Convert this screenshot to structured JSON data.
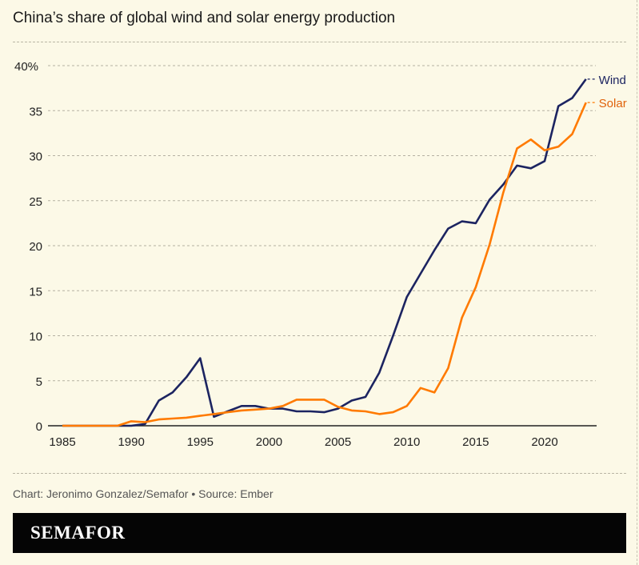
{
  "title": "China’s share of global wind and solar energy production",
  "credit": "Chart: Jeronimo Gonzalez/Semafor • Source: Ember",
  "brand": "SEMAFOR",
  "chart_data": {
    "type": "line",
    "title": "China’s share of global wind and solar energy production",
    "xlabel": "",
    "ylabel": "",
    "xlim": [
      1985,
      2023
    ],
    "ylim": [
      0,
      40
    ],
    "x_ticks": [
      1985,
      1990,
      1995,
      2000,
      2005,
      2010,
      2015,
      2020
    ],
    "y_ticks": [
      0,
      5,
      10,
      15,
      20,
      25,
      30,
      35,
      40
    ],
    "y_tick_labels": [
      "0",
      "5",
      "10",
      "15",
      "20",
      "25",
      "30",
      "35",
      "40%"
    ],
    "grid": true,
    "legend": "end-of-line labels, right",
    "x": [
      1985,
      1986,
      1987,
      1988,
      1989,
      1990,
      1991,
      1992,
      1993,
      1994,
      1995,
      1996,
      1997,
      1998,
      1999,
      2000,
      2001,
      2002,
      2003,
      2004,
      2005,
      2006,
      2007,
      2008,
      2009,
      2010,
      2011,
      2012,
      2013,
      2014,
      2015,
      2016,
      2017,
      2018,
      2019,
      2020,
      2021,
      2022,
      2023
    ],
    "series": [
      {
        "name": "Wind",
        "color": "#1c2461",
        "values": [
          0,
          0,
          0,
          0,
          0,
          0,
          0.2,
          2.8,
          3.7,
          5.4,
          7.5,
          1.0,
          1.6,
          2.2,
          2.2,
          1.9,
          1.9,
          1.6,
          1.6,
          1.5,
          1.9,
          2.8,
          3.2,
          5.9,
          10.0,
          14.3,
          16.9,
          19.5,
          21.9,
          22.7,
          22.5,
          25.1,
          26.8,
          28.9,
          28.6,
          29.4,
          35.5,
          36.4,
          38.5
        ]
      },
      {
        "name": "Solar",
        "color": "#ff7a00",
        "label_color": "#e0620a",
        "values": [
          0,
          0,
          0,
          0,
          0,
          0.5,
          0.4,
          0.7,
          0.8,
          0.9,
          1.1,
          1.3,
          1.5,
          1.7,
          1.8,
          1.9,
          2.2,
          2.9,
          2.9,
          2.9,
          2.1,
          1.7,
          1.6,
          1.3,
          1.5,
          2.2,
          4.2,
          3.7,
          6.4,
          12.0,
          15.4,
          20.1,
          25.9,
          30.8,
          31.8,
          30.6,
          31.0,
          32.4,
          35.9
        ]
      }
    ]
  }
}
